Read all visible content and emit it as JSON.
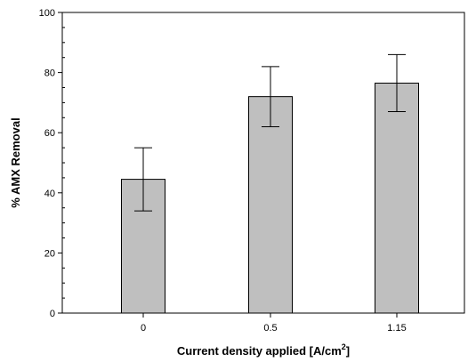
{
  "chart_data": {
    "type": "bar",
    "title": "",
    "xlabel": "Current density applied [A/cm",
    "xlabel_superscript": "2",
    "xlabel_suffix": "]",
    "ylabel": "% AMX Removal",
    "ylim": [
      0,
      100
    ],
    "y_major_ticks": [
      0,
      20,
      40,
      60,
      80,
      100
    ],
    "y_minor_step": 5,
    "categories": [
      "0",
      "0.5",
      "1.15"
    ],
    "values": [
      44.5,
      72.0,
      76.5
    ],
    "error": [
      10.5,
      10.0,
      9.5
    ],
    "grid": false,
    "bar_color": "#bfbfbf",
    "edge_color": "#000000"
  }
}
